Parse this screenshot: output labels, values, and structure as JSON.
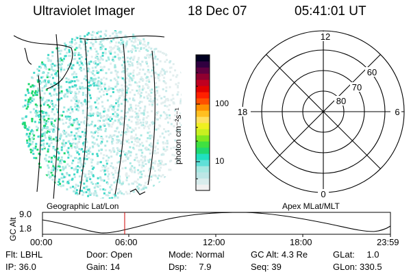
{
  "header": {
    "instrument": "Ultraviolet Imager",
    "date": "18 Dec 07",
    "time": "05:41:01 UT"
  },
  "colorbar": {
    "unit_label": "photon cm⁻²s⁻¹",
    "ticks": [
      "100",
      "10"
    ],
    "colors": [
      "#f0f0f0",
      "#d8ecec",
      "#bde6e6",
      "#a6e8e2",
      "#60e0d8",
      "#20e0c0",
      "#20d870",
      "#40e040",
      "#80e820",
      "#c8f020",
      "#f0f020",
      "#ffe060",
      "#ffc020",
      "#ff9000",
      "#ff5000",
      "#ff2000",
      "#e00000",
      "#c00020",
      "#900030",
      "#600040",
      "#300040",
      "#000020"
    ]
  },
  "polar": {
    "mlt_labels": {
      "top": "12",
      "left": "18",
      "right": "6",
      "bottom": "0"
    },
    "lat_labels": [
      "60",
      "70",
      "80"
    ]
  },
  "map_titles": {
    "left": "Geographic Lat/Lon",
    "right": "Apex MLat/MLT"
  },
  "timeline": {
    "ylabel": "GC Alt",
    "yticks": [
      "9.0",
      "1.8"
    ],
    "xticks": [
      "00:00",
      "06:00",
      "12:00",
      "18:00",
      "23:59"
    ]
  },
  "status": {
    "row1": [
      {
        "label": "Flt:",
        "value": "LBHL"
      },
      {
        "label": "Door:",
        "value": "Open"
      },
      {
        "label": "Mode:",
        "value": "Normal"
      },
      {
        "label": "GC Alt:",
        "value": "4.3 Re"
      },
      {
        "label": "GLat:",
        "value": "1.0"
      }
    ],
    "row2": [
      {
        "label": "IP:",
        "value": "36.0"
      },
      {
        "label": "Gain:",
        "value": "14"
      },
      {
        "label": "Dsp:",
        "value": "7.9"
      },
      {
        "label": "Seq:",
        "value": "39"
      },
      {
        "label": "GLon:",
        "value": "330.5"
      }
    ]
  }
}
